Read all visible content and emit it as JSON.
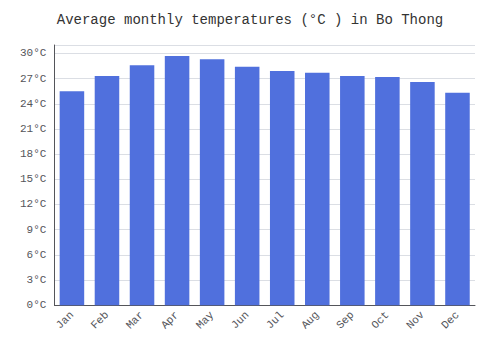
{
  "chart_data": {
    "type": "bar",
    "title": "Average monthly temperatures (°C ) in Bo Thong",
    "categories": [
      "Jan",
      "Feb",
      "Mar",
      "Apr",
      "May",
      "Jun",
      "Jul",
      "Aug",
      "Sep",
      "Oct",
      "Nov",
      "Dec"
    ],
    "values": [
      25.5,
      27.3,
      28.6,
      29.7,
      29.3,
      28.4,
      27.9,
      27.7,
      27.3,
      27.2,
      26.6,
      25.3
    ],
    "ylim": [
      0,
      31
    ],
    "yticks": [
      {
        "value": 0,
        "label": "0°C"
      },
      {
        "value": 3,
        "label": "3°C"
      },
      {
        "value": 6,
        "label": "6°C"
      },
      {
        "value": 9,
        "label": "9°C"
      },
      {
        "value": 12,
        "label": "12°C"
      },
      {
        "value": 15,
        "label": "15°C"
      },
      {
        "value": 18,
        "label": "18°C"
      },
      {
        "value": 21,
        "label": "21°C"
      },
      {
        "value": 24,
        "label": "24°C"
      },
      {
        "value": 27,
        "label": "27°C"
      },
      {
        "value": 30,
        "label": "30°C"
      }
    ],
    "grid": true
  }
}
